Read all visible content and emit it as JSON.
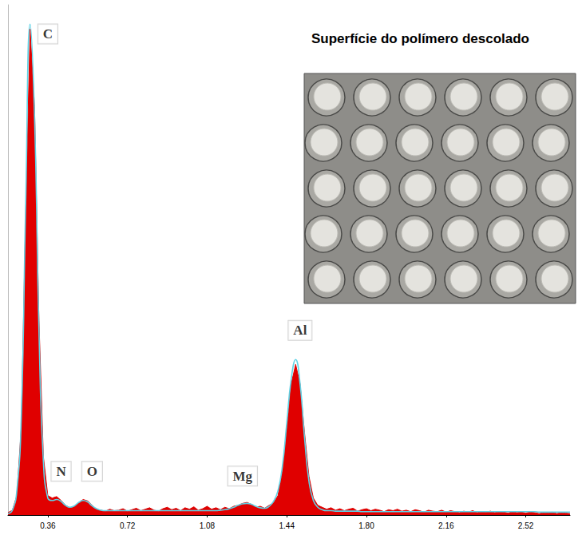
{
  "chart_data": {
    "type": "line",
    "title": "Superfície do polímero descolado",
    "x": [
      0.18,
      0.2,
      0.22,
      0.24,
      0.26,
      0.28,
      0.3,
      0.32,
      0.34,
      0.36,
      0.38,
      0.4,
      0.42,
      0.44,
      0.46,
      0.48,
      0.5,
      0.52,
      0.54,
      0.56,
      0.58,
      0.6,
      0.62,
      0.64,
      0.66,
      0.68,
      0.7,
      0.72,
      0.74,
      0.76,
      0.78,
      0.8,
      0.82,
      0.84,
      0.86,
      0.88,
      0.9,
      0.92,
      0.94,
      0.96,
      0.98,
      1.0,
      1.02,
      1.04,
      1.06,
      1.08,
      1.1,
      1.12,
      1.14,
      1.16,
      1.18,
      1.2,
      1.22,
      1.24,
      1.26,
      1.28,
      1.3,
      1.32,
      1.34,
      1.36,
      1.38,
      1.4,
      1.42,
      1.44,
      1.46,
      1.48,
      1.5,
      1.52,
      1.54,
      1.56,
      1.58,
      1.6,
      1.62,
      1.64,
      1.66,
      1.68,
      1.7,
      1.72,
      1.74,
      1.76,
      1.78,
      1.8,
      1.82,
      1.84,
      1.86,
      1.88,
      1.9,
      1.92,
      1.94,
      1.96,
      1.98,
      2.0,
      2.02,
      2.04,
      2.06,
      2.08,
      2.1,
      2.12,
      2.14,
      2.16,
      2.18,
      2.2,
      2.22,
      2.24,
      2.26,
      2.28,
      2.3,
      2.32,
      2.34,
      2.36,
      2.38,
      2.4,
      2.42,
      2.44,
      2.46,
      2.48,
      2.5,
      2.52,
      2.54,
      2.56,
      2.58,
      2.6,
      2.62,
      2.64,
      2.66,
      2.68,
      2.7,
      2.72
    ],
    "series": [
      {
        "type": "area",
        "color": "#e00000",
        "values": [
          0.5,
          1,
          4,
          18,
          62,
          100,
          84,
          40,
          12,
          4,
          3.5,
          3.8,
          3,
          2,
          1.5,
          1.8,
          2.6,
          3.2,
          2.9,
          2,
          1.2,
          1,
          0.8,
          1.2,
          0.9,
          1,
          1.3,
          0.8,
          1.1,
          1.4,
          0.9,
          1.2,
          1.5,
          1,
          0.8,
          1.3,
          1.6,
          1.1,
          1.4,
          0.9,
          1.5,
          1.2,
          1.7,
          1,
          1.3,
          1.8,
          1.2,
          1.5,
          1.1,
          1.6,
          1.3,
          1.8,
          2,
          2.4,
          2.6,
          2.2,
          1.6,
          1.8,
          1.4,
          2,
          2.5,
          4,
          9,
          18,
          27,
          31,
          27,
          17,
          8,
          3.5,
          2,
          1.6,
          1.2,
          1.5,
          1,
          1.3,
          0.9,
          1.2,
          1.4,
          0.8,
          1.1,
          1.3,
          0.9,
          1.2,
          1,
          0.7,
          1.1,
          0.9,
          1.2,
          0.8,
          1,
          0.7,
          1.1,
          0.9,
          0.6,
          1,
          0.8,
          0.7,
          1,
          0.6,
          0.9,
          0.7,
          0.5,
          0.8,
          0.6,
          0.9,
          0.5,
          0.7,
          0.6,
          0.8,
          0.5,
          0.7,
          0.6,
          0.4,
          0.7,
          0.5,
          0.6,
          0.4,
          0.6,
          0.5,
          0.3,
          0.5,
          0.4,
          0.6,
          0.3,
          0.5,
          0.4,
          0.3
        ]
      },
      {
        "type": "line",
        "color": "#5fd3e6",
        "values": [
          0.3,
          1,
          5,
          20,
          64,
          101,
          82,
          38,
          11,
          3.5,
          3,
          3.2,
          2.8,
          2,
          1.6,
          1.9,
          2.6,
          3,
          2.7,
          1.9,
          1.3,
          1,
          0.9,
          0.9,
          0.9,
          0.9,
          0.9,
          0.9,
          0.9,
          0.9,
          0.9,
          0.9,
          0.9,
          0.9,
          0.9,
          0.9,
          0.9,
          0.9,
          0.9,
          0.9,
          0.9,
          0.9,
          0.9,
          0.9,
          0.9,
          0.9,
          0.9,
          0.9,
          1,
          1.1,
          1.3,
          1.6,
          2,
          2.3,
          2.4,
          2.2,
          1.8,
          1.5,
          1.4,
          1.8,
          2.8,
          5,
          10,
          19,
          28,
          32,
          27,
          16,
          7,
          3,
          1.6,
          1.1,
          0.9,
          0.9,
          0.8,
          0.8,
          0.8,
          0.8,
          0.8,
          0.8,
          0.7,
          0.7,
          0.7,
          0.7,
          0.7,
          0.7,
          0.7,
          0.7,
          0.7,
          0.7,
          0.7,
          0.7,
          0.7,
          0.7,
          0.7,
          0.7,
          0.7,
          0.7,
          0.7,
          0.7,
          0.7,
          0.7,
          0.7,
          0.7,
          0.7,
          0.7,
          0.7,
          0.7,
          0.7,
          0.7,
          0.7,
          0.7,
          0.7,
          0.7,
          0.7,
          0.7,
          0.7,
          0.7,
          0.7,
          0.7,
          0.6,
          0.6,
          0.6,
          0.6,
          0.6,
          0.6,
          0.6,
          0.6
        ]
      }
    ],
    "xlim": [
      0.18,
      2.72
    ],
    "xticks": [
      0.36,
      0.72,
      1.08,
      1.44,
      {
        "value": 1.8,
        "label": "1.80"
      },
      2.16,
      2.52
    ],
    "ylim": [
      0,
      105
    ],
    "tick_labels": "x",
    "grid": false,
    "annotations": [
      {
        "text": "C",
        "x": 0.36,
        "y": 99
      },
      {
        "text": "N",
        "x": 0.42,
        "y": 9
      },
      {
        "text": "O",
        "x": 0.56,
        "y": 9
      },
      {
        "text": "Mg",
        "x": 1.24,
        "y": 8
      },
      {
        "text": "Al",
        "x": 1.5,
        "y": 38
      }
    ]
  }
}
